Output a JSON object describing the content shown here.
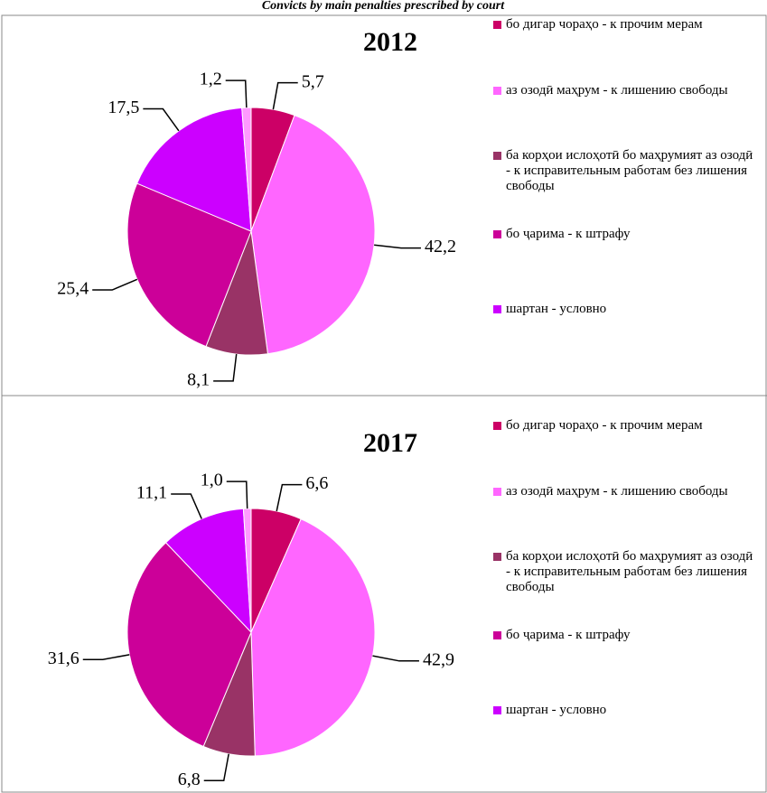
{
  "title": "Convicts by main penalties prescribed by court",
  "chart_data": [
    {
      "type": "pie",
      "title": "2012",
      "categories": [
        "бо дигар чораҳо - к прочим мерам",
        "аз озодӣ маҳрум - к лишению свободы",
        "ба корҳои ислоҳотӣ бо маҳрумият аз озодӣ - к исправительным работам без лишения свободы",
        "бо ҷарима - к штрафу",
        "шартан - условно",
        null
      ],
      "values": [
        5.7,
        42.2,
        8.1,
        25.4,
        17.5,
        1.2
      ],
      "value_labels": [
        "5,7",
        "42,2",
        "8,1",
        "25,4",
        "17,5",
        "1,2"
      ],
      "colors": [
        "#cc0066",
        "#ff66ff",
        "#993366",
        "#cc0099",
        "#cc00ff",
        "#ff99ff"
      ]
    },
    {
      "type": "pie",
      "title": "2017",
      "categories": [
        "бо дигар чораҳо - к прочим мерам",
        "аз озодӣ маҳрум - к лишению свободы",
        "ба корҳои ислоҳотӣ бо маҳрумият аз озодӣ - к исправительным работам без лишения свободы",
        "бо ҷарима - к штрафу",
        "шартан - условно",
        null
      ],
      "values": [
        6.6,
        42.9,
        6.8,
        31.6,
        11.1,
        1.0
      ],
      "value_labels": [
        "6,6",
        "42,9",
        "6,8",
        "31,6",
        "11,1",
        "1,0"
      ],
      "colors": [
        "#cc0066",
        "#ff66ff",
        "#993366",
        "#cc0099",
        "#cc00ff",
        "#ff99ff"
      ]
    }
  ]
}
